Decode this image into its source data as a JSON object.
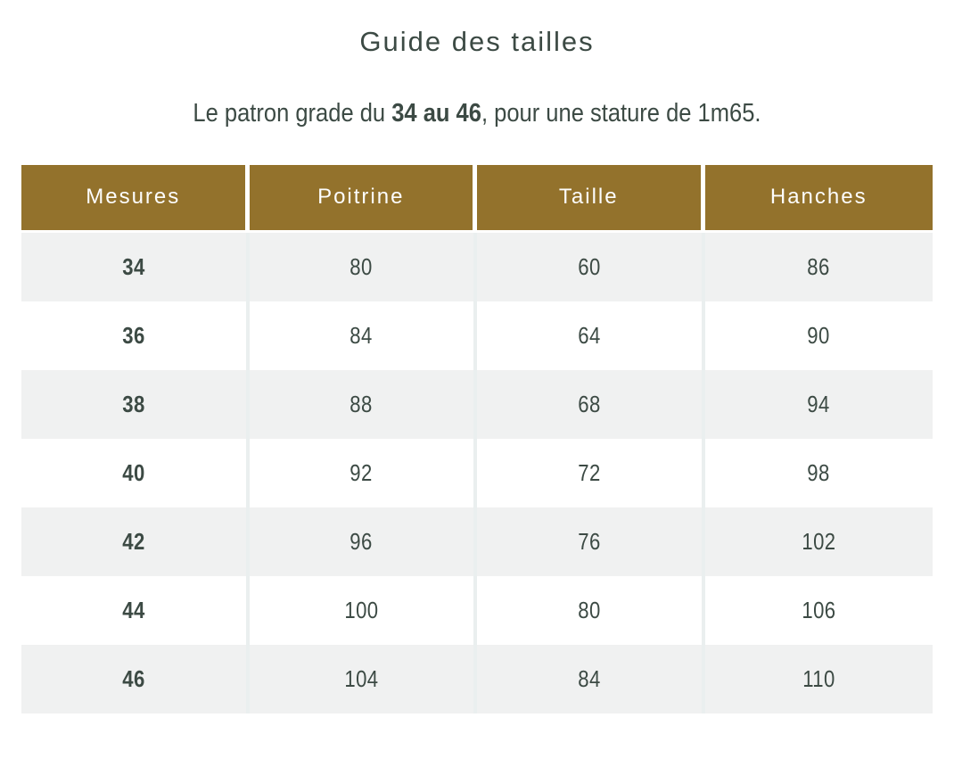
{
  "page": {
    "title": "Guide des tailles",
    "subtitle_prefix": "Le patron grade du ",
    "subtitle_bold": "34 au 46",
    "subtitle_suffix": ", pour une stature de 1m65."
  },
  "colors": {
    "header_bg": "#93722c",
    "header_text": "#fdfdfd",
    "row_alt_bg": "#f0f1f1",
    "separator": "#eaefef",
    "text": "#3c4a44"
  },
  "table": {
    "columns": [
      "Mesures",
      "Poitrine",
      "Taille",
      "Hanches"
    ],
    "rows": [
      {
        "size": "34",
        "poitrine": "80",
        "taille": "60",
        "hanches": "86"
      },
      {
        "size": "36",
        "poitrine": "84",
        "taille": "64",
        "hanches": "90"
      },
      {
        "size": "38",
        "poitrine": "88",
        "taille": "68",
        "hanches": "94"
      },
      {
        "size": "40",
        "poitrine": "92",
        "taille": "72",
        "hanches": "98"
      },
      {
        "size": "42",
        "poitrine": "96",
        "taille": "76",
        "hanches": "102"
      },
      {
        "size": "44",
        "poitrine": "100",
        "taille": "80",
        "hanches": "106"
      },
      {
        "size": "46",
        "poitrine": "104",
        "taille": "84",
        "hanches": "110"
      }
    ]
  }
}
